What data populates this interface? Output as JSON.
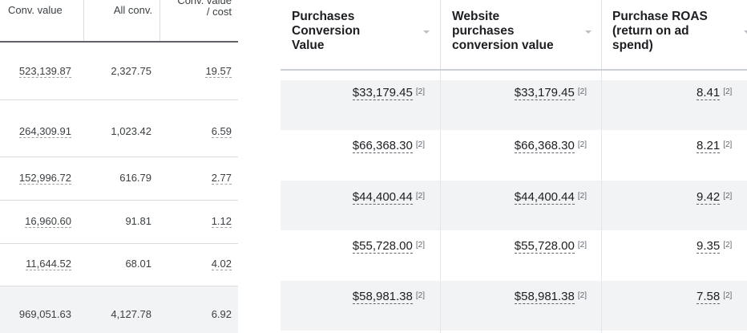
{
  "left_table": {
    "headers": {
      "conv_value": "Conv. value",
      "all_conv": "All conv.",
      "conv_value_cost_line1": "Conv. value",
      "conv_value_cost_line2": "/ cost"
    },
    "rows": [
      {
        "conv_value": "523,139.87",
        "all_conv": "2,327.75",
        "value_cost": "19.57"
      },
      {
        "conv_value": "264,309.91",
        "all_conv": "1,023.42",
        "value_cost": "6.59"
      },
      {
        "conv_value": "152,996.72",
        "all_conv": "616.79",
        "value_cost": "2.77"
      },
      {
        "conv_value": "16,960.60",
        "all_conv": "91.81",
        "value_cost": "1.12"
      },
      {
        "conv_value": "11,644.52",
        "all_conv": "68.01",
        "value_cost": "4.02"
      }
    ],
    "total": {
      "conv_value": "969,051.63",
      "all_conv": "4,127.78",
      "value_cost": "6.92"
    }
  },
  "right_table": {
    "headers": {
      "purchases_conversion_value": [
        "Purchases",
        "Conversion",
        "Value"
      ],
      "website_purchases_conversion_value": [
        "Website",
        "purchases",
        "conversion value"
      ],
      "purchase_roas": [
        "Purchase ROAS",
        "(return on ad",
        "spend)"
      ]
    },
    "footnote_marker": "[2]",
    "rows": [
      {
        "purchases_value": "$33,179.45",
        "website_value": "$33,179.45",
        "roas": "8.41"
      },
      {
        "purchases_value": "$66,368.30",
        "website_value": "$66,368.30",
        "roas": "8.21"
      },
      {
        "purchases_value": "$44,400.44",
        "website_value": "$44,400.44",
        "roas": "9.42"
      },
      {
        "purchases_value": "$55,728.00",
        "website_value": "$55,728.00",
        "roas": "9.35"
      },
      {
        "purchases_value": "$58,981.38",
        "website_value": "$58,981.38",
        "roas": "7.58"
      }
    ]
  },
  "colors": {
    "left_text": "#3c4043",
    "left_divider": "#dadce0",
    "left_total_bg": "#f1f3f4",
    "right_text": "#1c1e21",
    "right_shade": "#f2f3f5",
    "right_footnote": "#606770"
  },
  "icons": {
    "sort_caret": "caret-down-icon"
  }
}
